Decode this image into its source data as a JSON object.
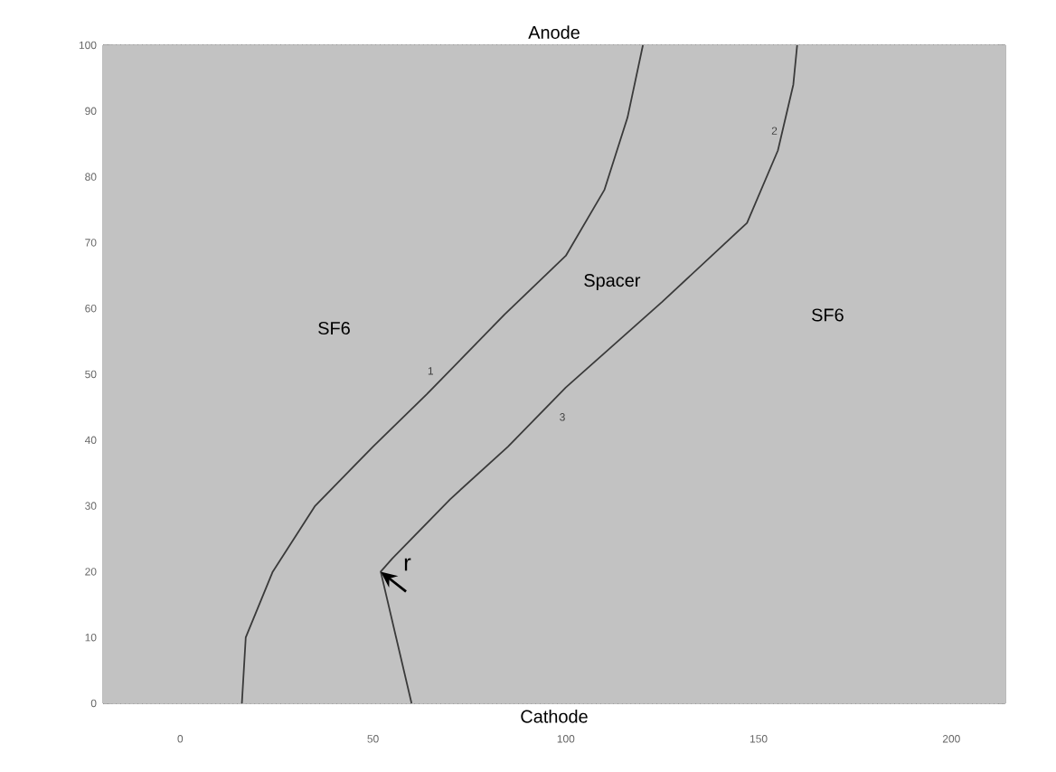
{
  "chart_data": {
    "type": "line",
    "x": [
      16,
      17,
      24,
      35,
      50,
      64,
      84,
      100,
      110,
      116,
      120
    ],
    "series": [
      {
        "color": "#3a3a3a",
        "values": [
          0,
          10,
          20,
          30,
          39,
          47,
          59,
          68,
          78,
          89,
          100
        ]
      },
      {
        "color": "#3a3a3a",
        "x": [
          60,
          56,
          52,
          55,
          70,
          85,
          100,
          125,
          147,
          155,
          159,
          160
        ],
        "values": [
          0,
          10,
          20,
          22,
          31,
          39,
          48,
          61,
          73,
          84,
          94,
          100
        ]
      }
    ],
    "xlim": [
      -20,
      214
    ],
    "ylim": [
      0,
      100
    ],
    "xticks": [
      0,
      50,
      100,
      150,
      200
    ],
    "yticks": [
      0,
      10,
      20,
      30,
      40,
      50,
      60,
      70,
      80,
      90,
      100
    ],
    "bands": [
      {
        "axis": "y",
        "from": 0,
        "to": 100,
        "color": "#c2c2c2"
      }
    ],
    "grid": true,
    "marker": "none",
    "line_style": "solid",
    "annotations": [
      "Anode",
      "Cathode",
      "SF6",
      "Spacer",
      "SF6",
      "1",
      "2",
      "3",
      {
        "text": "r",
        "x": 52,
        "y": 20
      }
    ]
  }
}
